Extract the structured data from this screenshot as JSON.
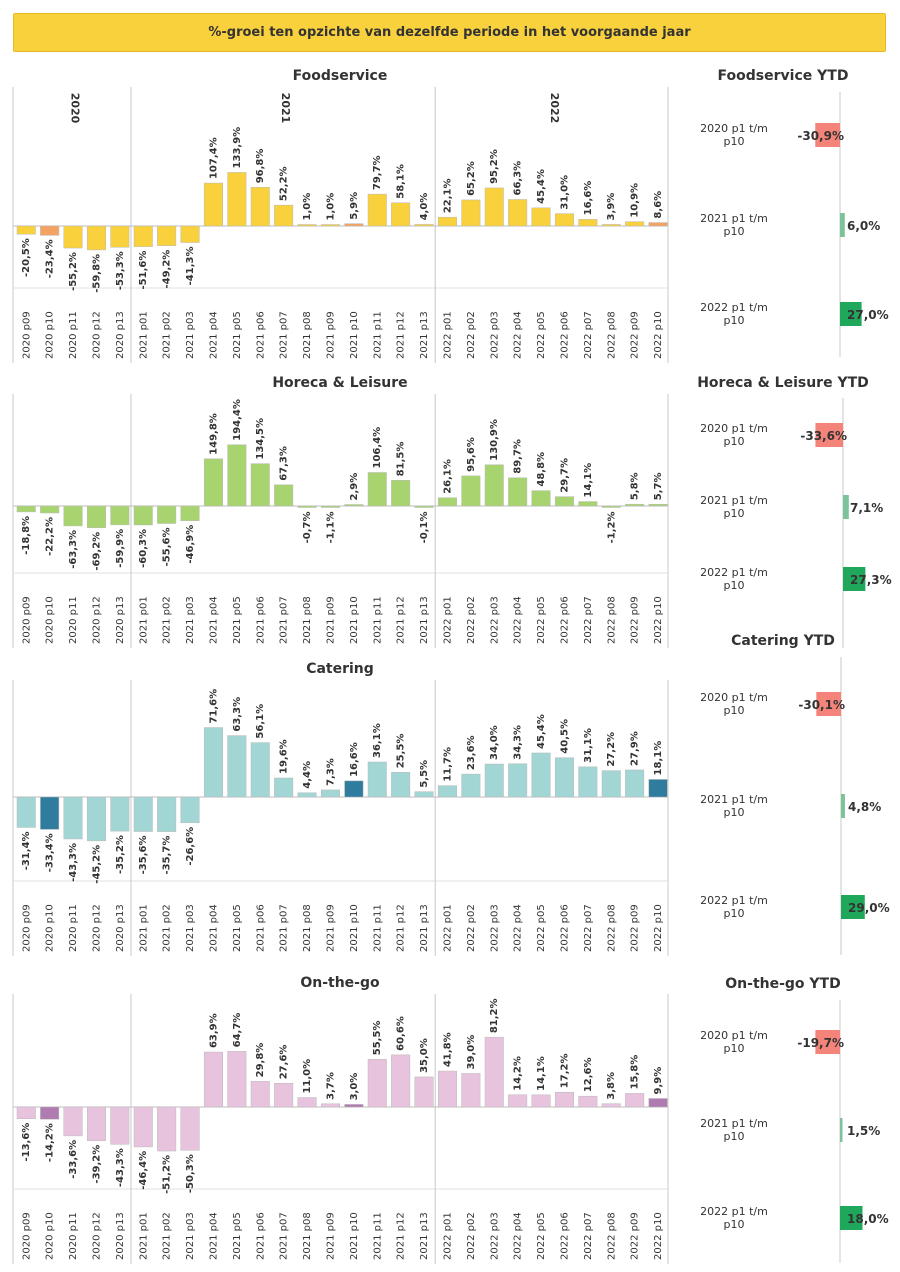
{
  "banner": "%-groei ten opzichte van dezelfde periode in het voorgaande jaar",
  "periods": [
    "2020 p09",
    "2020 p10",
    "2020 p11",
    "2020 p12",
    "2020 p13",
    "2021 p01",
    "2021 p02",
    "2021 p03",
    "2021 p04",
    "2021 p05",
    "2021 p06",
    "2021 p07",
    "2021 p08",
    "2021 p09",
    "2021 p10",
    "2021 p11",
    "2021 p12",
    "2021 p13",
    "2022 p01",
    "2022 p02",
    "2022 p03",
    "2022 p04",
    "2022 p05",
    "2022 p06",
    "2022 p07",
    "2022 p08",
    "2022 p09",
    "2022 p10"
  ],
  "year_labels": [
    "2020",
    "2021",
    "2022"
  ],
  "ytd_categories": [
    "2020 p1 t/m p10",
    "2021 p1 t/m p10",
    "2022 p1 t/m p10"
  ],
  "colors": {
    "neg": "#f4837a",
    "pos": "#1fa85c",
    "pos_light": "#7cc39a"
  },
  "chart_data": [
    {
      "type": "bar",
      "title": "Foodservice",
      "color": "#f9d13d",
      "highlight_color": "#f4a261",
      "highlight": [
        1,
        14,
        27
      ],
      "values": [
        -20.5,
        -23.4,
        -55.2,
        -59.8,
        -53.3,
        -51.6,
        -49.2,
        -41.3,
        107.4,
        133.9,
        96.8,
        52.2,
        1.0,
        1.0,
        5.9,
        79.7,
        58.1,
        4.0,
        22.1,
        65.2,
        95.2,
        66.3,
        45.4,
        31.0,
        16.6,
        3.9,
        10.9,
        8.6
      ],
      "labels": [
        "-20,5%",
        "-23,4%",
        "-55,2%",
        "-59,8%",
        "-53,3%",
        "-51,6%",
        "-49,2%",
        "-41,3%",
        "107,4%",
        "133,9%",
        "96,8%",
        "52,2%",
        "1,0%",
        "1,0%",
        "5,9%",
        "79,7%",
        "58,1%",
        "4,0%",
        "22,1%",
        "65,2%",
        "95,2%",
        "66,3%",
        "45,4%",
        "31,0%",
        "16,6%",
        "3,9%",
        "10,9%",
        "8,6%"
      ],
      "ytd": {
        "title": "Foodservice YTD",
        "values": [
          -30.9,
          6.0,
          27.0
        ],
        "labels": [
          "-30,9%",
          "6,0%",
          "27,0%"
        ]
      }
    },
    {
      "type": "bar",
      "title": "Horeca & Leisure",
      "color": "#a8d46f",
      "highlight_color": "#a8d46f",
      "highlight": [],
      "values": [
        -18.8,
        -22.2,
        -63.3,
        -69.2,
        -59.9,
        -60.3,
        -55.6,
        -46.9,
        149.8,
        194.4,
        134.5,
        67.3,
        -0.7,
        -1.1,
        2.9,
        106.4,
        81.5,
        -0.1,
        26.1,
        95.6,
        130.9,
        89.7,
        48.8,
        29.7,
        14.1,
        -1.2,
        5.8,
        5.7
      ],
      "labels": [
        "-18,8%",
        "-22,2%",
        "-63,3%",
        "-69,2%",
        "-59,9%",
        "-60,3%",
        "-55,6%",
        "-46,9%",
        "149,8%",
        "194,4%",
        "134,5%",
        "67,3%",
        "-0,7%",
        "-1,1%",
        "2,9%",
        "106,4%",
        "81,5%",
        "-0,1%",
        "26,1%",
        "95,6%",
        "130,9%",
        "89,7%",
        "48,8%",
        "29,7%",
        "14,1%",
        "-1,2%",
        "5,8%",
        "5,7%"
      ],
      "ytd": {
        "title": "Horeca & Leisure YTD",
        "values": [
          -33.6,
          7.1,
          27.3
        ],
        "labels": [
          "-33,6%",
          "7,1%",
          "27,3%"
        ]
      }
    },
    {
      "type": "bar",
      "title": "Catering",
      "color": "#a2d6d4",
      "highlight_color": "#2f7c9e",
      "highlight": [
        1,
        14,
        27
      ],
      "values": [
        -31.4,
        -33.4,
        -43.3,
        -45.2,
        -35.2,
        -35.6,
        -35.7,
        -26.6,
        71.6,
        63.3,
        56.1,
        19.6,
        4.4,
        7.3,
        16.6,
        36.1,
        25.5,
        5.5,
        11.7,
        23.6,
        34.0,
        34.3,
        45.4,
        40.5,
        31.1,
        27.2,
        27.9,
        18.1
      ],
      "labels": [
        "-31,4%",
        "-33,4%",
        "-43,3%",
        "-45,2%",
        "-35,2%",
        "-35,6%",
        "-35,7%",
        "-26,6%",
        "71,6%",
        "63,3%",
        "56,1%",
        "19,6%",
        "4,4%",
        "7,3%",
        "16,6%",
        "36,1%",
        "25,5%",
        "5,5%",
        "11,7%",
        "23,6%",
        "34,0%",
        "34,3%",
        "45,4%",
        "40,5%",
        "31,1%",
        "27,2%",
        "27,9%",
        "18,1%"
      ],
      "ytd": {
        "title": "Catering YTD",
        "values": [
          -30.1,
          4.8,
          29.0
        ],
        "labels": [
          "-30,1%",
          "4,8%",
          "29,0%"
        ]
      }
    },
    {
      "type": "bar",
      "title": "On-the-go",
      "color": "#e8c3de",
      "highlight_color": "#b07bb0",
      "highlight": [
        1,
        14,
        27
      ],
      "values": [
        -13.6,
        -14.2,
        -33.6,
        -39.2,
        -43.3,
        -46.4,
        -51.2,
        -50.3,
        63.9,
        64.7,
        29.8,
        27.6,
        11.0,
        3.7,
        3.0,
        55.5,
        60.6,
        35.0,
        41.8,
        39.0,
        81.2,
        14.2,
        14.1,
        17.2,
        12.6,
        3.8,
        15.8,
        9.9
      ],
      "labels": [
        "-13,6%",
        "-14,2%",
        "-33,6%",
        "-39,2%",
        "-43,3%",
        "-46,4%",
        "-51,2%",
        "-50,3%",
        "63,9%",
        "64,7%",
        "29,8%",
        "27,6%",
        "11,0%",
        "3,7%",
        "3,0%",
        "55,5%",
        "60,6%",
        "35,0%",
        "41,8%",
        "39,0%",
        "81,2%",
        "14,2%",
        "14,1%",
        "17,2%",
        "12,6%",
        "3,8%",
        "15,8%",
        "9,9%"
      ],
      "ytd": {
        "title": "On-the-go YTD",
        "values": [
          -19.7,
          1.5,
          18.0
        ],
        "labels": [
          "-19,7%",
          "1,5%",
          "18,0%"
        ]
      }
    }
  ]
}
